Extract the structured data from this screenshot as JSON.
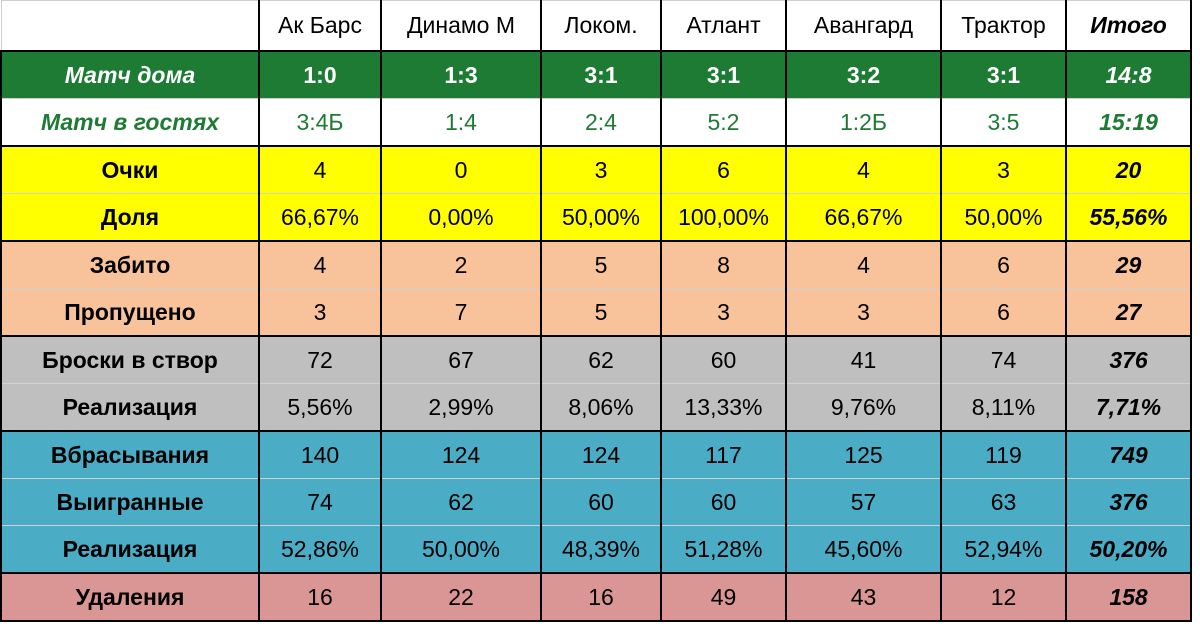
{
  "table": {
    "columns": [
      "Ак Барс",
      "Динамо М",
      "Локом.",
      "Атлант",
      "Авангард",
      "Трактор",
      "Итого"
    ],
    "rows": [
      {
        "label": "Матч дома",
        "cells": [
          "1:0",
          "1:3",
          "3:1",
          "3:1",
          "3:2",
          "3:1",
          "14:8"
        ]
      },
      {
        "label": "Матч в гостях",
        "cells": [
          "3:4Б",
          "1:4",
          "2:4",
          "5:2",
          "1:2Б",
          "3:5",
          "15:19"
        ]
      },
      {
        "label": "Очки",
        "cells": [
          "4",
          "0",
          "3",
          "6",
          "4",
          "3",
          "20"
        ]
      },
      {
        "label": "Доля",
        "cells": [
          "66,67%",
          "0,00%",
          "50,00%",
          "100,00%",
          "66,67%",
          "50,00%",
          "55,56%"
        ]
      },
      {
        "label": "Забито",
        "cells": [
          "4",
          "2",
          "5",
          "8",
          "4",
          "6",
          "29"
        ]
      },
      {
        "label": "Пропущено",
        "cells": [
          "3",
          "7",
          "5",
          "3",
          "3",
          "6",
          "27"
        ]
      },
      {
        "label": "Броски в створ",
        "cells": [
          "72",
          "67",
          "62",
          "60",
          "41",
          "74",
          "376"
        ]
      },
      {
        "label": "Реализация",
        "cells": [
          "5,56%",
          "2,99%",
          "8,06%",
          "13,33%",
          "9,76%",
          "8,11%",
          "7,71%"
        ]
      },
      {
        "label": "Вбрасывания",
        "cells": [
          "140",
          "124",
          "124",
          "117",
          "125",
          "119",
          "749"
        ]
      },
      {
        "label": "Выигранные",
        "cells": [
          "74",
          "62",
          "60",
          "60",
          "57",
          "63",
          "376"
        ]
      },
      {
        "label": "Реализация",
        "cells": [
          "52,86%",
          "50,00%",
          "48,39%",
          "51,28%",
          "45,60%",
          "52,94%",
          "50,20%"
        ]
      },
      {
        "label": "Удаления",
        "cells": [
          "16",
          "22",
          "16",
          "49",
          "43",
          "12",
          "158"
        ]
      }
    ]
  }
}
